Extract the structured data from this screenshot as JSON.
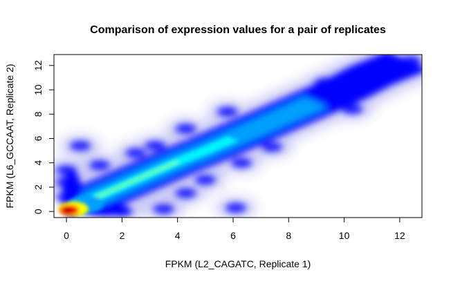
{
  "chart_data": {
    "type": "heatmap",
    "title": "Comparison of expression values for a pair of replicates",
    "xlabel": "FPKM (L2_CAGATC, Replicate 1)",
    "ylabel": "FPKM (L6_GCCAAT, Replicate 2)",
    "xlim": [
      -0.45,
      12.8
    ],
    "ylim": [
      -0.5,
      12.9
    ],
    "x_ticks": [
      "0",
      "2",
      "4",
      "6",
      "8",
      "10",
      "12"
    ],
    "y_ticks": [
      "0",
      "2",
      "4",
      "6",
      "8",
      "10",
      "12"
    ],
    "grid": false,
    "colormap": [
      "#ffffff",
      "#c8c8f5",
      "#0000ff",
      "#00a0ff",
      "#00ffff",
      "#80ff80",
      "#ffff00",
      "#ff8000",
      "#ff0000",
      "#a00000"
    ],
    "density_peak": {
      "x": 0.1,
      "y": 0.1
    },
    "ridge": [
      {
        "x": 0.3,
        "y": 0.4,
        "density": 0.62
      },
      {
        "x": 1.0,
        "y": 1.1,
        "density": 0.46
      },
      {
        "x": 2.0,
        "y": 2.1,
        "density": 0.38
      },
      {
        "x": 3.0,
        "y": 3.1,
        "density": 0.33
      },
      {
        "x": 4.0,
        "y": 4.1,
        "density": 0.3
      },
      {
        "x": 5.0,
        "y": 5.0,
        "density": 0.28
      },
      {
        "x": 6.0,
        "y": 6.0,
        "density": 0.26
      },
      {
        "x": 7.0,
        "y": 7.0,
        "density": 0.24
      },
      {
        "x": 8.0,
        "y": 8.0,
        "density": 0.23
      },
      {
        "x": 9.0,
        "y": 9.0,
        "density": 0.21
      },
      {
        "x": 10.0,
        "y": 10.0,
        "density": 0.16
      },
      {
        "x": 11.0,
        "y": 11.2,
        "density": 0.12
      },
      {
        "x": 12.3,
        "y": 12.4,
        "density": 0.09
      }
    ],
    "outlier_clusters": [
      {
        "x": 0.5,
        "y": 5.4
      },
      {
        "x": 0.0,
        "y": 3.4
      },
      {
        "x": 0.0,
        "y": 2.4
      },
      {
        "x": 1.2,
        "y": 3.8
      },
      {
        "x": 2.5,
        "y": 4.8
      },
      {
        "x": 3.2,
        "y": 5.4
      },
      {
        "x": 4.3,
        "y": 6.8
      },
      {
        "x": 5.8,
        "y": 8.2
      },
      {
        "x": 9.3,
        "y": 10.6
      },
      {
        "x": 11.0,
        "y": 11.8
      },
      {
        "x": 12.4,
        "y": 12.4
      },
      {
        "x": 10.3,
        "y": 8.4
      },
      {
        "x": 7.4,
        "y": 5.3
      },
      {
        "x": 6.3,
        "y": 4.0
      },
      {
        "x": 5.0,
        "y": 2.6
      },
      {
        "x": 4.3,
        "y": 1.5
      },
      {
        "x": 3.5,
        "y": 0.2
      },
      {
        "x": 6.1,
        "y": 0.3
      },
      {
        "x": 2.0,
        "y": 0.0
      }
    ]
  }
}
